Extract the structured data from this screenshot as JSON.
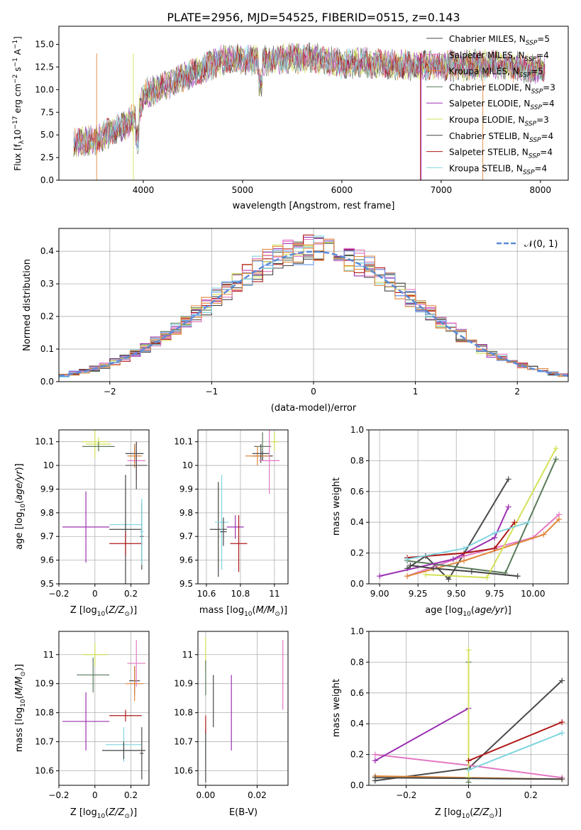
{
  "title": "PLATE=2956, MJD=54525, FIBERID=0515, z=0.143",
  "series_names": [
    "Chabrier MILES, N_SSP=5",
    "Salpeter MILES, N_SSP=4",
    "Kroupa MILES, N_SSP=5",
    "Chabrier ELODIE, N_SSP=3",
    "Salpeter ELODIE, N_SSP=4",
    "Kroupa ELODIE, N_SSP=3",
    "Chabrier STELIB, N_SSP=4",
    "Salpeter STELIB, N_SSP=4",
    "Kroupa STELIB, N_SSP=4"
  ],
  "chart_data": [
    {
      "type": "line",
      "id": "spectrum",
      "xlabel": "wavelength [Angstrom, rest frame]",
      "ylabel": "Flux [f_λ 10^-17 erg cm^-2 s^-1 A^-1]",
      "xlim": [
        3150,
        8280
      ],
      "ylim": [
        0,
        17
      ],
      "xticks": [
        4000,
        5000,
        6000,
        7000,
        8000
      ],
      "yticks": [
        0.0,
        2.5,
        5.0,
        7.5,
        10.0,
        12.5,
        15.0
      ],
      "legend": "top-right",
      "continuum": [
        [
          3300,
          4.1
        ],
        [
          3500,
          4.4
        ],
        [
          3800,
          6.0
        ],
        [
          3950,
          7.2
        ],
        [
          4000,
          9.5
        ],
        [
          4200,
          10.3
        ],
        [
          4500,
          11.8
        ],
        [
          4800,
          13.3
        ],
        [
          5000,
          13.4
        ],
        [
          5200,
          13.2
        ],
        [
          5500,
          13.5
        ],
        [
          5800,
          13.4
        ],
        [
          6000,
          12.8
        ],
        [
          6200,
          13.0
        ],
        [
          6500,
          12.8
        ],
        [
          6800,
          12.6
        ],
        [
          7000,
          12.6
        ],
        [
          7300,
          12.7
        ],
        [
          7600,
          12.7
        ],
        [
          8000,
          12.2
        ]
      ],
      "extent": [
        3300,
        8050
      ]
    },
    {
      "type": "bar",
      "id": "residuals",
      "xlabel": "(data-model)/error",
      "ylabel": "Normed distribution",
      "xlim": [
        -2.5,
        2.5
      ],
      "ylim": [
        0,
        0.47
      ],
      "xticks": [
        -2,
        -1,
        0,
        1,
        2
      ],
      "yticks": [
        0.0,
        0.1,
        0.2,
        0.3,
        0.4
      ],
      "reference": "N(0,1)",
      "reference_label": "𝒩(0, 1)",
      "legend": "top-right",
      "bin_width": 0.1
    },
    {
      "type": "scatter",
      "id": "age-vs-Z",
      "xlabel": "Z [log10(Z/Z_sun)]",
      "ylabel": "age [log10(age/yr)]",
      "xlim": [
        -0.2,
        0.3
      ],
      "ylim": [
        9.5,
        10.15
      ],
      "xticks": [
        -0.2,
        0.0,
        0.2
      ],
      "yticks": [
        9.5,
        9.6,
        9.7,
        9.8,
        9.9,
        10.0,
        10.1
      ],
      "points": [
        {
          "s": 5,
          "x": 0.0,
          "y": 10.1,
          "xe": 0.07,
          "ye": 0.07
        },
        {
          "s": 5,
          "x": 0.02,
          "y": 10.09,
          "xe": 0.07,
          "ye": 0.03
        },
        {
          "s": 3,
          "x": 0.02,
          "y": 10.08,
          "xe": 0.09,
          "ye": 0.02
        },
        {
          "s": 6,
          "x": 0.22,
          "y": 10.05,
          "xe": 0.05,
          "ye": 0.04
        },
        {
          "s": 2,
          "x": 0.22,
          "y": 10.04,
          "xe": 0.04,
          "ye": 0.05
        },
        {
          "s": 1,
          "x": 0.23,
          "y": 10.02,
          "xe": 0.05,
          "ye": 0.08
        },
        {
          "s": 0,
          "x": 0.23,
          "y": 10.0,
          "xe": 0.06,
          "ye": 0.1
        },
        {
          "s": 4,
          "x": -0.05,
          "y": 9.74,
          "xe": 0.13,
          "ye": 0.15
        },
        {
          "s": 8,
          "x": 0.17,
          "y": 9.75,
          "xe": 0.09,
          "ye": 0.03
        },
        {
          "s": 6,
          "x": 0.17,
          "y": 9.73,
          "xe": 0.09,
          "ye": 0.23
        },
        {
          "s": 7,
          "x": 0.17,
          "y": 9.67,
          "xe": 0.09,
          "ye": 0.05
        },
        {
          "s": 0,
          "x": 0.26,
          "y": 9.7,
          "xe": 0.01,
          "ye": 0.14
        },
        {
          "s": 8,
          "x": 0.26,
          "y": 9.72,
          "xe": 0.01,
          "ye": 0.14
        }
      ]
    },
    {
      "type": "scatter",
      "id": "age-vs-mass",
      "xlabel": "mass [log10(M/M_sun)]",
      "ylim": [
        9.5,
        10.15
      ],
      "xlim": [
        10.55,
        11.08
      ],
      "xticks": [
        10.6,
        10.8,
        11.0
      ],
      "yticks": [
        9.5,
        9.6,
        9.7,
        9.8,
        9.9,
        10.0,
        10.1
      ],
      "points": [
        {
          "s": 5,
          "x": 11.0,
          "y": 10.1,
          "xe": 0.02,
          "ye": 0.04
        },
        {
          "s": 3,
          "x": 10.93,
          "y": 10.08,
          "xe": 0.05,
          "ye": 0.06
        },
        {
          "s": 6,
          "x": 10.93,
          "y": 10.04,
          "xe": 0.06,
          "ye": 0.02
        },
        {
          "s": 2,
          "x": 10.9,
          "y": 10.04,
          "xe": 0.07,
          "ye": 0.04
        },
        {
          "s": 0,
          "x": 10.92,
          "y": 10.05,
          "xe": 0.05,
          "ye": 0.04
        },
        {
          "s": 1,
          "x": 10.97,
          "y": 10.02,
          "xe": 0.06,
          "ye": 0.14
        },
        {
          "s": 4,
          "x": 10.77,
          "y": 9.74,
          "xe": 0.05,
          "ye": 0.05
        },
        {
          "s": 6,
          "x": 10.67,
          "y": 9.73,
          "xe": 0.05,
          "ye": 0.2
        },
        {
          "s": 8,
          "x": 10.69,
          "y": 9.76,
          "xe": 0.04,
          "ye": 0.2
        },
        {
          "s": 7,
          "x": 10.79,
          "y": 9.67,
          "xe": 0.05,
          "ye": 0.12
        },
        {
          "s": 0,
          "x": 10.7,
          "y": 9.72,
          "xe": 0.02,
          "ye": 0.06
        }
      ]
    },
    {
      "type": "line",
      "id": "weight-vs-age",
      "xlabel": "age [log10(age/yr)]",
      "ylabel": "mass weight",
      "xlim": [
        8.93,
        10.23
      ],
      "ylim": [
        0,
        1
      ],
      "xticks": [
        9.0,
        9.25,
        9.5,
        9.75,
        10.0
      ],
      "xtick_labels": [
        "9.00",
        "9.25",
        "9.50",
        "9.75",
        "10.00"
      ],
      "yticks": [
        0.0,
        0.2,
        0.4,
        0.6,
        0.8,
        1.0
      ],
      "series": [
        {
          "s": 0,
          "x": [
            9.18,
            9.3,
            9.45,
            9.84
          ],
          "y": [
            0.1,
            0.18,
            0.03,
            0.68
          ]
        },
        {
          "s": 1,
          "x": [
            9.18,
            9.55,
            10.0,
            10.17
          ],
          "y": [
            0.05,
            0.18,
            0.3,
            0.45
          ]
        },
        {
          "s": 2,
          "x": [
            9.18,
            9.55,
            10.07,
            10.17
          ],
          "y": [
            0.05,
            0.15,
            0.32,
            0.42
          ]
        },
        {
          "s": 3,
          "x": [
            9.18,
            9.82,
            10.15
          ],
          "y": [
            0.15,
            0.07,
            0.81
          ]
        },
        {
          "s": 4,
          "x": [
            9.0,
            9.48,
            9.75,
            9.84
          ],
          "y": [
            0.05,
            0.16,
            0.3,
            0.5
          ]
        },
        {
          "s": 5,
          "x": [
            9.3,
            9.7,
            10.15
          ],
          "y": [
            0.06,
            0.04,
            0.88
          ]
        },
        {
          "s": 6,
          "x": [
            9.2,
            9.35,
            9.6,
            9.9
          ],
          "y": [
            0.12,
            0.1,
            0.08,
            0.05
          ]
        },
        {
          "s": 7,
          "x": [
            9.18,
            9.55,
            9.75,
            9.88
          ],
          "y": [
            0.17,
            0.2,
            0.23,
            0.4
          ]
        },
        {
          "s": 8,
          "x": [
            9.18,
            9.55,
            9.75,
            9.97
          ],
          "y": [
            0.16,
            0.23,
            0.33,
            0.4
          ]
        }
      ]
    },
    {
      "type": "scatter",
      "id": "mass-vs-Z",
      "xlabel": "Z [log10(Z/Z_sun)]",
      "ylabel": "mass [log10(M/M_sun)]",
      "xlim": [
        -0.2,
        0.3
      ],
      "ylim": [
        10.55,
        11.08
      ],
      "xticks": [
        -0.2,
        0.0,
        0.2
      ],
      "yticks": [
        10.6,
        10.7,
        10.8,
        10.9,
        11.0
      ],
      "points": [
        {
          "s": 5,
          "x": 0.0,
          "y": 11.0,
          "xe": 0.07,
          "ye": 0.04
        },
        {
          "s": 3,
          "x": -0.01,
          "y": 10.93,
          "xe": 0.09,
          "ye": 0.06
        },
        {
          "s": 0,
          "x": 0.22,
          "y": 10.91,
          "xe": 0.03,
          "ye": 0.05
        },
        {
          "s": 2,
          "x": 0.22,
          "y": 10.9,
          "xe": 0.05,
          "ye": 0.06
        },
        {
          "s": 1,
          "x": 0.23,
          "y": 10.97,
          "xe": 0.05,
          "ye": 0.08
        },
        {
          "s": 7,
          "x": 0.17,
          "y": 10.79,
          "xe": 0.09,
          "ye": 0.02
        },
        {
          "s": 4,
          "x": -0.05,
          "y": 10.77,
          "xe": 0.13,
          "ye": 0.1
        },
        {
          "s": 8,
          "x": 0.16,
          "y": 10.69,
          "xe": 0.1,
          "ye": 0.06
        },
        {
          "s": 6,
          "x": 0.16,
          "y": 10.67,
          "xe": 0.12,
          "ye": 0.03
        },
        {
          "s": 0,
          "x": 0.26,
          "y": 10.66,
          "xe": 0.01,
          "ye": 0.09
        }
      ]
    },
    {
      "type": "scatter",
      "id": "mass-vs-EBV",
      "xlabel": "E(B-V)",
      "xlim": [
        -0.003,
        0.032
      ],
      "ylim": [
        10.55,
        11.08
      ],
      "xticks": [
        0.0,
        0.02
      ],
      "xtick_labels": [
        "0.00",
        "0.02"
      ],
      "yticks": [
        10.6,
        10.7,
        10.8,
        10.9,
        11.0
      ],
      "points": [
        {
          "s": 5,
          "x": 0.0,
          "y": 11.0,
          "xe": 0,
          "ye": 0.06
        },
        {
          "s": 3,
          "x": 0.0,
          "y": 10.92,
          "xe": 0,
          "ye": 0.06
        },
        {
          "s": 0,
          "x": 0.003,
          "y": 10.84,
          "xe": 0,
          "ye": 0.09
        },
        {
          "s": 4,
          "x": 0.01,
          "y": 10.8,
          "xe": 0,
          "ye": 0.13
        },
        {
          "s": 1,
          "x": 0.03,
          "y": 10.93,
          "xe": 0,
          "ye": 0.12
        },
        {
          "s": 8,
          "x": 0.0,
          "y": 10.69,
          "xe": 0,
          "ye": 0.07
        },
        {
          "s": 6,
          "x": 0.0,
          "y": 10.65,
          "xe": 0,
          "ye": 0.09
        },
        {
          "s": 7,
          "x": 0.0,
          "y": 10.76,
          "xe": 0,
          "ye": 0.03
        }
      ]
    },
    {
      "type": "line",
      "id": "weight-vs-Z",
      "xlabel": "Z [log10(Z/Z_sun)]",
      "ylabel": "mass weight",
      "xlim": [
        -0.32,
        0.32
      ],
      "ylim": [
        0,
        1
      ],
      "xticks": [
        -0.2,
        0.0,
        0.2
      ],
      "yticks": [
        0.0,
        0.2,
        0.4,
        0.6,
        0.8,
        1.0
      ],
      "series": [
        {
          "s": 0,
          "x": [
            -0.3,
            0.0,
            0.3
          ],
          "y": [
            0.03,
            0.11,
            0.68
          ]
        },
        {
          "s": 1,
          "x": [
            -0.3,
            0.0,
            0.3
          ],
          "y": [
            0.2,
            0.13,
            0.05
          ]
        },
        {
          "s": 2,
          "x": [
            -0.3,
            0.0,
            0.3
          ],
          "y": [
            0.06,
            0.05,
            0.04
          ]
        },
        {
          "s": 3,
          "x": [
            0.0,
            0.0
          ],
          "y": [
            0.02,
            0.8
          ]
        },
        {
          "s": 4,
          "x": [
            -0.3,
            0.0
          ],
          "y": [
            0.16,
            0.5
          ]
        },
        {
          "s": 5,
          "x": [
            0.0,
            0.0
          ],
          "y": [
            0.05,
            0.88
          ]
        },
        {
          "s": 6,
          "x": [
            -0.3,
            0.3
          ],
          "y": [
            0.05,
            0.04
          ]
        },
        {
          "s": 7,
          "x": [
            0.0,
            0.3
          ],
          "y": [
            0.16,
            0.41
          ]
        },
        {
          "s": 8,
          "x": [
            0.0,
            0.3
          ],
          "y": [
            0.1,
            0.34
          ]
        }
      ]
    }
  ],
  "colors": [
    "#4a4a4a",
    "#e377c2",
    "#e0883a",
    "#5a7a5a",
    "#9b30b0",
    "#d4e157",
    "#444444",
    "#b01818",
    "#80d4e0"
  ],
  "ref_color": "#5b8bd6",
  "hist_extra_colors": [
    "#e377c2",
    "#6495ed",
    "#e0883a"
  ]
}
